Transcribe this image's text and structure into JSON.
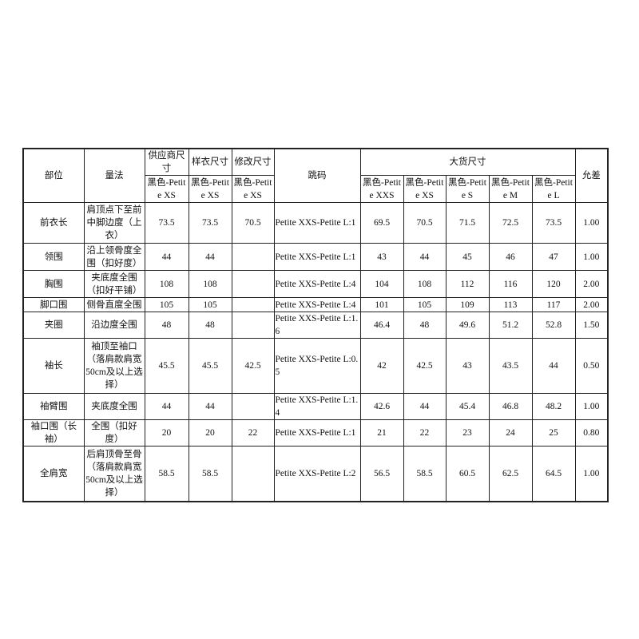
{
  "headers": {
    "part": "部位",
    "method": "量法",
    "supplier": "供应商尺寸",
    "sample": "样衣尺寸",
    "revised": "修改尺寸",
    "grading": "跳码",
    "bulk": "大货尺寸",
    "tolerance": "允差",
    "supplier_size": "黑色-Petite XS",
    "sample_size": "黑色-Petite XS",
    "revised_size": "黑色-Petite XS",
    "bulk_sizes": [
      "黑色-Petite XXS",
      "黑色-Petite XS",
      "黑色-Petite S",
      "黑色-Petite M",
      "黑色-Petite L"
    ]
  },
  "rows": [
    {
      "part": "前衣长",
      "method": "肩顶点下至前中脚边度（上衣）",
      "supplier": "73.5",
      "sample": "73.5",
      "revised": "70.5",
      "grading": "Petite XXS-Petite L:1",
      "bulk": [
        "69.5",
        "70.5",
        "71.5",
        "72.5",
        "73.5"
      ],
      "tolerance": "1.00"
    },
    {
      "part": "领围",
      "method": "沿上领骨度全围（扣好度）",
      "supplier": "44",
      "sample": "44",
      "revised": "",
      "grading": "Petite XXS-Petite L:1",
      "bulk": [
        "43",
        "44",
        "45",
        "46",
        "47"
      ],
      "tolerance": "1.00"
    },
    {
      "part": "胸围",
      "method": "夹底度全围（扣好平铺）",
      "supplier": "108",
      "sample": "108",
      "revised": "",
      "grading": "Petite XXS-Petite L:4",
      "bulk": [
        "104",
        "108",
        "112",
        "116",
        "120"
      ],
      "tolerance": "2.00"
    },
    {
      "part": "脚口围",
      "method": "侧骨直度全围",
      "supplier": "105",
      "sample": "105",
      "revised": "",
      "grading": "Petite XXS-Petite L:4",
      "bulk": [
        "101",
        "105",
        "109",
        "113",
        "117"
      ],
      "tolerance": "2.00"
    },
    {
      "part": "夹圈",
      "method": "沿边度全围",
      "supplier": "48",
      "sample": "48",
      "revised": "",
      "grading": "Petite XXS-Petite L:1.6",
      "bulk": [
        "46.4",
        "48",
        "49.6",
        "51.2",
        "52.8"
      ],
      "tolerance": "1.50"
    },
    {
      "part": "袖长",
      "method": "袖顶至袖口（落肩款肩宽50cm及以上选择）",
      "supplier": "45.5",
      "sample": "45.5",
      "revised": "42.5",
      "grading": "Petite XXS-Petite L:0.5",
      "bulk": [
        "42",
        "42.5",
        "43",
        "43.5",
        "44"
      ],
      "tolerance": "0.50"
    },
    {
      "part": "袖臂围",
      "method": "夹底度全围",
      "supplier": "44",
      "sample": "44",
      "revised": "",
      "grading": "Petite XXS-Petite L:1.4",
      "bulk": [
        "42.6",
        "44",
        "45.4",
        "46.8",
        "48.2"
      ],
      "tolerance": "1.00"
    },
    {
      "part": "袖口围（长袖）",
      "method": "全围（扣好度）",
      "supplier": "20",
      "sample": "20",
      "revised": "22",
      "grading": "Petite XXS-Petite L:1",
      "bulk": [
        "21",
        "22",
        "23",
        "24",
        "25"
      ],
      "tolerance": "0.80"
    },
    {
      "part": "全肩宽",
      "method": "后肩顶骨至骨（落肩款肩宽50cm及以上选择）",
      "supplier": "58.5",
      "sample": "58.5",
      "revised": "",
      "grading": "Petite XXS-Petite L:2",
      "bulk": [
        "56.5",
        "58.5",
        "60.5",
        "62.5",
        "64.5"
      ],
      "tolerance": "1.00"
    }
  ]
}
